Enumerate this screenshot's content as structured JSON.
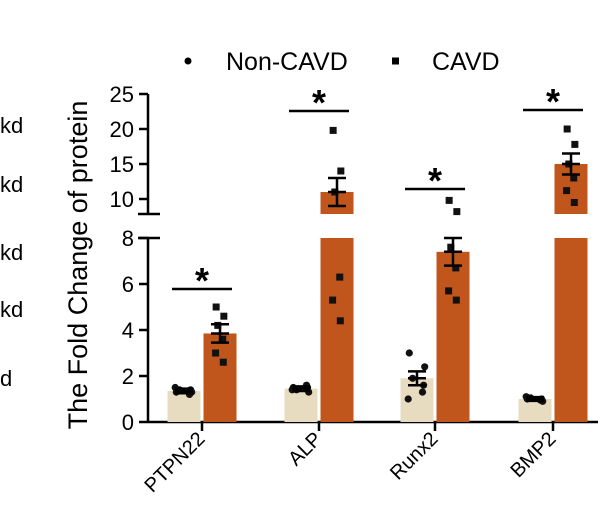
{
  "left_lane_fragments": [
    "kd",
    "kd",
    "kd",
    "kd",
    "d"
  ],
  "chart_data": {
    "type": "bar",
    "title": "",
    "xlabel": "",
    "ylabel": "The Fold Change of protein",
    "categories": [
      "PTPN22",
      "ALP",
      "Runx2",
      "BMP2"
    ],
    "y_axis_break": {
      "lower": [
        0,
        8
      ],
      "upper": [
        8,
        25
      ]
    },
    "lower_ticks": [
      "0",
      "2",
      "4",
      "6",
      "8"
    ],
    "upper_ticks": [
      "10",
      "15",
      "20",
      "25"
    ],
    "legend": {
      "position": "top",
      "entries": [
        {
          "name": "Non-CAVD",
          "marker": "circle"
        },
        {
          "name": "CAVD",
          "marker": "square"
        }
      ]
    },
    "significance_label": "*",
    "significance": [
      true,
      true,
      true,
      true
    ],
    "colors": {
      "Non-CAVD": "#e8dcc0",
      "CAVD": "#c0561c",
      "point": "#111111"
    },
    "series": [
      {
        "name": "Non-CAVD",
        "values": [
          1.35,
          1.45,
          1.9,
          1.0
        ],
        "errors": [
          0.1,
          0.1,
          0.3,
          0.08
        ],
        "points": [
          [
            1.3,
            1.3,
            1.4,
            1.2,
            1.5,
            1.4
          ],
          [
            1.5,
            1.3,
            1.4,
            1.6,
            1.4,
            1.5
          ],
          [
            3.0,
            2.4,
            1.9,
            1.3,
            1.0,
            1.6
          ],
          [
            1.0,
            0.9,
            1.05,
            0.95,
            1.1,
            1.0
          ]
        ]
      },
      {
        "name": "CAVD",
        "values": [
          3.85,
          11.0,
          7.4,
          15.0
        ],
        "errors": [
          0.4,
          2.0,
          0.6,
          1.5
        ],
        "points": [
          [
            5.0,
            4.6,
            4.2,
            3.6,
            3.0,
            2.6
          ],
          [
            19.8,
            14.0,
            11.0,
            6.3,
            5.3,
            4.4
          ],
          [
            9.8,
            8.2,
            7.6,
            6.7,
            5.7,
            5.3
          ],
          [
            20.0,
            17.8,
            15.0,
            13.0,
            11.2,
            9.5
          ]
        ]
      }
    ]
  }
}
